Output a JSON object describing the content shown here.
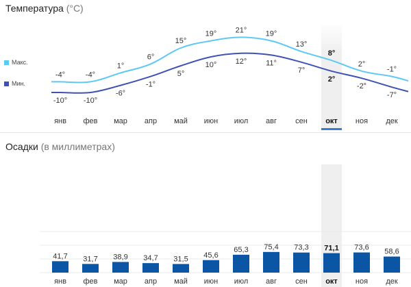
{
  "temperature": {
    "title": "Температура",
    "unit": "(°C)",
    "legend": {
      "max_label": "Макс.",
      "min_label": "Мин."
    },
    "colors": {
      "max": "#5bc8f5",
      "min": "#3f51b5"
    },
    "selected_month_index": 9
  },
  "precipitation": {
    "title": "Осадки",
    "unit": "(в миллиметрах)",
    "bar_color": "#0a56a5"
  },
  "chart_data": [
    {
      "type": "line",
      "categories": [
        "янв",
        "фев",
        "мар",
        "апр",
        "май",
        "июн",
        "июл",
        "авг",
        "сен",
        "окт",
        "ноя",
        "дек"
      ],
      "series": [
        {
          "name": "Макс.",
          "values": [
            -4,
            -4,
            1,
            6,
            15,
            19,
            21,
            19,
            13,
            8,
            2,
            -1
          ],
          "labels": [
            "-4°",
            "-4°",
            "1°",
            "6°",
            "15°",
            "19°",
            "21°",
            "19°",
            "13°",
            "8°",
            "2°",
            "-1°"
          ]
        },
        {
          "name": "Мин.",
          "values": [
            -10,
            -10,
            -6,
            -1,
            5,
            10,
            12,
            11,
            7,
            2,
            -2,
            -7
          ],
          "labels": [
            "-10°",
            "-10°",
            "-6°",
            "-1°",
            "5°",
            "10°",
            "12°",
            "11°",
            "7°",
            "2°",
            "-2°",
            "-7°"
          ]
        }
      ]
    },
    {
      "type": "bar",
      "categories": [
        "янв",
        "фев",
        "мар",
        "апр",
        "май",
        "июн",
        "июл",
        "авг",
        "сен",
        "окт",
        "ноя",
        "дек"
      ],
      "values": [
        41.7,
        31.7,
        38.9,
        34.7,
        31.5,
        45.6,
        65.3,
        75.4,
        73.3,
        71.1,
        73.6,
        58.6
      ],
      "labels": [
        "41,7",
        "31,7",
        "38,9",
        "34,7",
        "31,5",
        "45,6",
        "65,3",
        "75,4",
        "73,3",
        "71,1",
        "73,6",
        "58,6"
      ]
    }
  ]
}
